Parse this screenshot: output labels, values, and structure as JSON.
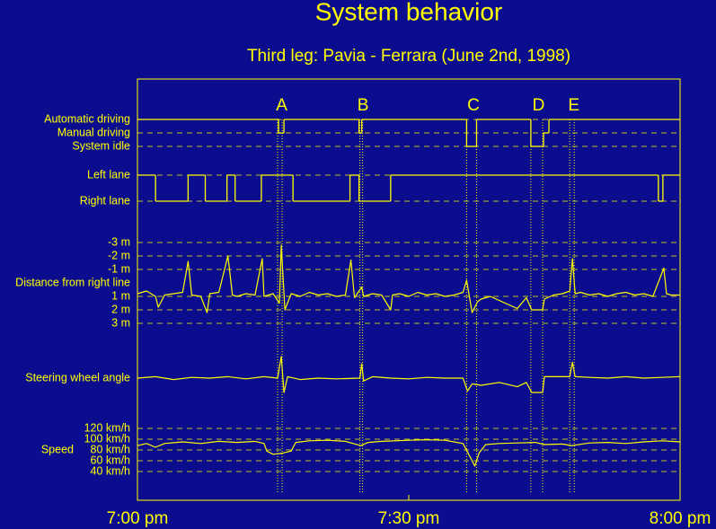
{
  "chart_data": {
    "type": "line",
    "title": "System behavior",
    "subtitle": "Third leg: Pavia - Ferrara (June 2nd, 1998)",
    "color": "#ffff00",
    "background": "#0c0c8e",
    "grid": true,
    "xlim": [
      0,
      60
    ],
    "xticks": [
      {
        "value": 0,
        "label": "7:00 pm"
      },
      {
        "value": 30,
        "label": "7:30 pm"
      },
      {
        "value": 60,
        "label": "8:00 pm"
      }
    ],
    "events": [
      {
        "label": "A",
        "x": [
          15.5,
          16.0
        ]
      },
      {
        "label": "B",
        "x": [
          24.6,
          24.9
        ]
      },
      {
        "label": "C",
        "x": [
          36.4,
          37.5
        ]
      },
      {
        "label": "D",
        "x": [
          43.5,
          44.8
        ]
      },
      {
        "label": "E",
        "x": [
          47.8,
          48.3
        ]
      }
    ],
    "panels": [
      {
        "type": "step",
        "ylim": [
          2,
          0
        ],
        "yticks": [
          {
            "value": 0,
            "label": "Automatic driving"
          },
          {
            "value": 1,
            "label": "Manual driving"
          },
          {
            "value": 2,
            "label": "System idle"
          }
        ],
        "x": [
          0,
          15.6,
          16.2,
          24.5,
          24.8,
          36.4,
          37.5,
          43.5,
          44.9,
          45.5
        ],
        "values": [
          0,
          1,
          0,
          1,
          0,
          2,
          0,
          2,
          1,
          0
        ]
      },
      {
        "type": "step",
        "ylim": [
          1,
          0
        ],
        "yticks": [
          {
            "value": 0,
            "label": "Left lane"
          },
          {
            "value": 1,
            "label": "Right lane"
          }
        ],
        "x": [
          0,
          2.0,
          5.6,
          7.5,
          9.9,
          10.8,
          13.7,
          17.2,
          23.5,
          24.5,
          28.0,
          57.6,
          58.1
        ],
        "values": [
          0,
          1,
          0,
          1,
          0,
          1,
          0,
          1,
          0,
          1,
          0,
          1,
          0
        ]
      },
      {
        "type": "line",
        "label": "Distance from right line",
        "ylim": [
          3,
          -3
        ],
        "yticks": [
          {
            "value": -3,
            "label": "-3 m"
          },
          {
            "value": -2,
            "label": "-2 m"
          },
          {
            "value": -1,
            "label": "-1 m"
          },
          {
            "value": 1,
            "label": "1 m"
          },
          {
            "value": 2,
            "label": "2 m"
          },
          {
            "value": 3,
            "label": "3 m"
          }
        ],
        "x": [
          0,
          1,
          2,
          2.3,
          3,
          4,
          5,
          5.6,
          6,
          7,
          7.7,
          8,
          9,
          10,
          10.5,
          11,
          12,
          13,
          13.8,
          14,
          15,
          15.7,
          15.9,
          16.3,
          17,
          18,
          19,
          20,
          21,
          22,
          23,
          23.6,
          24,
          24.8,
          25,
          26,
          27,
          28,
          28.2,
          29,
          30,
          31,
          32,
          33,
          34,
          35,
          36,
          36.4,
          37,
          37.6,
          38,
          39,
          40,
          41,
          42,
          43,
          43.6,
          44.8,
          45,
          46,
          47,
          47.8,
          48.1,
          48.4,
          49,
          50,
          51,
          52,
          53,
          54,
          55,
          56,
          57,
          58.2,
          58.5,
          59,
          60
        ],
        "values": [
          0.8,
          0.6,
          1.0,
          1.8,
          0.9,
          0.8,
          0.7,
          -1.6,
          0.9,
          1.0,
          2.2,
          0.8,
          0.7,
          -2.0,
          0.9,
          1.0,
          0.8,
          0.9,
          -1.8,
          1.0,
          0.8,
          1.5,
          -2.8,
          2.0,
          0.8,
          1.0,
          0.7,
          0.9,
          0.8,
          1.0,
          0.9,
          -1.7,
          1.1,
          0.3,
          1.0,
          0.8,
          0.9,
          2.0,
          0.9,
          0.8,
          1.0,
          0.7,
          0.9,
          0.8,
          1.0,
          0.9,
          0.7,
          -0.2,
          2.2,
          1.4,
          1.2,
          1.0,
          1.3,
          1.6,
          1.9,
          1.1,
          2.0,
          2.0,
          1.2,
          0.9,
          0.8,
          0.6,
          -1.8,
          0.8,
          0.7,
          0.9,
          0.8,
          1.0,
          0.8,
          0.7,
          0.9,
          0.8,
          1.0,
          -1.1,
          0.8,
          0.9,
          0.9
        ]
      },
      {
        "type": "line",
        "label": "Steering wheel angle",
        "ylim": [
          -1,
          1
        ],
        "yticks": [],
        "x": [
          0,
          2,
          4,
          6,
          8,
          10,
          12,
          14,
          15.5,
          15.9,
          16.2,
          16.6,
          18,
          20,
          22,
          24.6,
          24.8,
          25,
          26,
          28,
          30,
          32,
          34,
          36,
          36.5,
          37,
          38,
          40,
          42,
          43,
          43.6,
          44.8,
          45,
          46,
          47.8,
          48.1,
          48.4,
          50,
          52,
          54,
          56,
          58,
          60
        ],
        "values": [
          0,
          0.1,
          -0.1,
          0.05,
          0,
          0.1,
          -0.05,
          0.1,
          0,
          1.5,
          -1.0,
          0.1,
          -0.1,
          0,
          -0.05,
          0,
          1.0,
          -0.2,
          0.1,
          0,
          -0.05,
          0.05,
          0,
          0,
          -0.9,
          -0.4,
          -0.5,
          -0.3,
          -0.6,
          -0.3,
          -1.0,
          -1.0,
          0.1,
          0.1,
          0.1,
          1.1,
          0.1,
          0.05,
          0,
          0.1,
          0,
          0.05,
          0.1
        ]
      },
      {
        "type": "line",
        "label": "Speed",
        "ylim": [
          40,
          120
        ],
        "yticks": [
          {
            "value": 120,
            "label": "120 km/h"
          },
          {
            "value": 100,
            "label": "100 km/h"
          },
          {
            "value": 80,
            "label": "80 km/h"
          },
          {
            "value": 60,
            "label": "60 km/h"
          },
          {
            "value": 40,
            "label": "40 km/h"
          }
        ],
        "x": [
          0,
          1,
          2,
          3,
          5,
          7,
          9,
          11,
          13,
          14,
          14.3,
          15,
          16,
          17,
          17.5,
          19,
          21,
          23,
          24.7,
          25.5,
          27,
          30,
          32,
          34,
          36,
          37,
          37.3,
          37.8,
          38.5,
          40,
          42,
          44,
          45,
          47,
          48,
          50,
          52,
          54,
          56,
          58,
          60
        ],
        "values": [
          88,
          92,
          85,
          92,
          95,
          92,
          96,
          94,
          96,
          92,
          78,
          72,
          74,
          78,
          94,
          97,
          98,
          96,
          88,
          94,
          96,
          98,
          99,
          98,
          92,
          60,
          50,
          75,
          90,
          92,
          93,
          94,
          90,
          91,
          88,
          93,
          94,
          92,
          95,
          97,
          95
        ]
      }
    ]
  }
}
